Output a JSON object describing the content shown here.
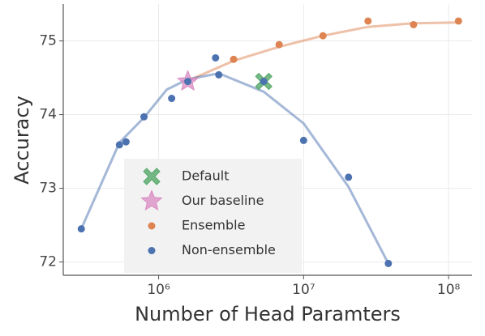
{
  "chart_data": {
    "type": "scatter",
    "xlabel": "Number of Head Paramters",
    "ylabel": "Accuracy",
    "xscale": "log",
    "xlim": [
      220000,
      145000000
    ],
    "ylim": [
      71.82,
      75.5
    ],
    "xticks": [
      {
        "value": 1000000,
        "label": "10⁶"
      },
      {
        "value": 10000000,
        "label": "10⁷"
      },
      {
        "value": 100000000,
        "label": "10⁸"
      }
    ],
    "yticks": [
      72,
      73,
      74,
      75
    ],
    "grid": true,
    "legend": "lower left",
    "series": [
      {
        "style": "line",
        "color": "#dd8452",
        "x": [
          1590000,
          3290000,
          6780000,
          13600000,
          27800000,
          57300000,
          117000000
        ],
        "values": [
          74.46,
          74.73,
          74.92,
          75.07,
          75.19,
          75.24,
          75.25
        ]
      },
      {
        "style": "line",
        "color": "#4c72b0",
        "x": [
          293000,
          537000,
          793000,
          1140000,
          1590000,
          2600000,
          5310000,
          10000000,
          20400000,
          38400000
        ],
        "values": [
          72.45,
          73.62,
          73.96,
          74.34,
          74.48,
          74.56,
          74.31,
          73.88,
          73.02,
          71.98
        ]
      },
      {
        "name": "Default",
        "marker": "x",
        "color": "#55a868",
        "x": [
          5310000
        ],
        "values": [
          74.45
        ]
      },
      {
        "name": "Our baseline",
        "marker": "star",
        "color": "#da8bc3",
        "x": [
          1590000
        ],
        "values": [
          74.45
        ]
      },
      {
        "name": "Ensemble",
        "marker": "dot",
        "color": "#dd8452",
        "x": [
          3290000,
          6780000,
          13600000,
          27800000,
          57300000,
          117000000
        ],
        "values": [
          74.75,
          74.95,
          75.07,
          75.27,
          75.22,
          75.27
        ]
      },
      {
        "name": "Non-ensemble",
        "marker": "dot",
        "color": "#4c72b0",
        "x": [
          293000,
          537000,
          596000,
          793000,
          1230000,
          1590000,
          2470000,
          2600000,
          5310000,
          10000000,
          20400000,
          38400000
        ],
        "values": [
          72.45,
          73.59,
          73.63,
          73.97,
          74.22,
          74.45,
          74.77,
          74.54,
          74.45,
          73.65,
          73.15,
          71.98
        ]
      }
    ]
  }
}
